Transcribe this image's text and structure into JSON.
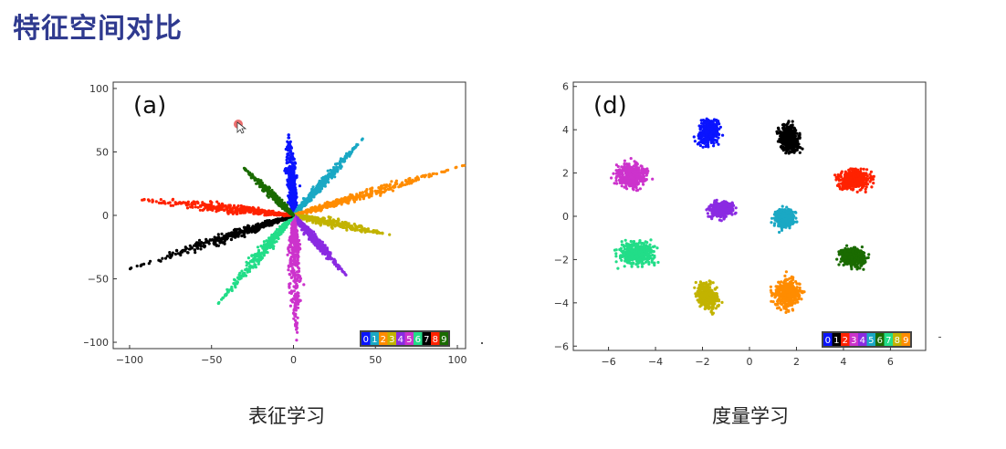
{
  "slide": {
    "title": "特征空间对比",
    "caption_left": "表征学习",
    "caption_right": "度量学习"
  },
  "chart_data": [
    {
      "type": "scatter",
      "panel_label": "(a)",
      "xlim": [
        -110,
        105
      ],
      "ylim": [
        -105,
        105
      ],
      "xticks": [
        -100,
        -50,
        0,
        50,
        100
      ],
      "yticks": [
        100,
        50,
        0,
        -50,
        -100
      ],
      "legend": [
        "0",
        "1",
        "2",
        "3",
        "4",
        "5",
        "6",
        "7",
        "8",
        "9"
      ],
      "legend_placement": "bottom-right",
      "clusters": [
        {
          "label": "0",
          "color": "#0a14ff",
          "from": [
            0,
            0
          ],
          "to": [
            -3,
            65
          ],
          "width": 4.5
        },
        {
          "label": "1",
          "color": "#1aa8c4",
          "from": [
            0,
            0
          ],
          "to": [
            42,
            60
          ],
          "width": 3.5
        },
        {
          "label": "2",
          "color": "#ff8c00",
          "from": [
            0,
            0
          ],
          "to": [
            100,
            38
          ],
          "width": 4
        },
        {
          "label": "3",
          "color": "#c2b300",
          "from": [
            0,
            0
          ],
          "to": [
            58,
            -15
          ],
          "width": 4
        },
        {
          "label": "4",
          "color": "#8a2be2",
          "from": [
            0,
            0
          ],
          "to": [
            32,
            -47
          ],
          "width": 3.5
        },
        {
          "label": "5",
          "color": "#cc33cc",
          "from": [
            0,
            0
          ],
          "to": [
            2,
            -95
          ],
          "width": 5.5
        },
        {
          "label": "6",
          "color": "#22dd88",
          "from": [
            0,
            0
          ],
          "to": [
            -45,
            -68
          ],
          "width": 4.5
        },
        {
          "label": "7",
          "color": "#000000",
          "from": [
            0,
            0
          ],
          "to": [
            -100,
            -42
          ],
          "width": 5
        },
        {
          "label": "8",
          "color": "#ff2200",
          "from": [
            0,
            0
          ],
          "to": [
            -97,
            13
          ],
          "width": 4.5
        },
        {
          "label": "9",
          "color": "#1a6b00",
          "from": [
            0,
            0
          ],
          "to": [
            -30,
            37
          ],
          "width": 3
        }
      ]
    },
    {
      "type": "scatter",
      "panel_label": "(d)",
      "xlim": [
        -7.5,
        7.5
      ],
      "ylim": [
        -6.2,
        6.2
      ],
      "xticks": [
        -6,
        -4,
        -2,
        0,
        2,
        4,
        6
      ],
      "yticks": [
        6,
        4,
        2,
        0,
        -2,
        -4,
        -6
      ],
      "legend": [
        "0",
        "1",
        "2",
        "3",
        "4",
        "5",
        "6",
        "7",
        "8",
        "9"
      ],
      "legend_placement": "bottom-right",
      "clusters": [
        {
          "label": "0",
          "color": "#0a14ff",
          "center": [
            -1.7,
            3.9
          ],
          "rx": 0.9,
          "ry": 1.3,
          "tilt": -15
        },
        {
          "label": "1",
          "color": "#000000",
          "center": [
            1.7,
            3.6
          ],
          "rx": 0.9,
          "ry": 1.4,
          "tilt": 20
        },
        {
          "label": "2",
          "color": "#ff2200",
          "center": [
            4.5,
            1.7
          ],
          "rx": 1.6,
          "ry": 1.0,
          "tilt": 10
        },
        {
          "label": "3",
          "color": "#cc33cc",
          "center": [
            -5.0,
            1.9
          ],
          "rx": 1.5,
          "ry": 1.2,
          "tilt": 0
        },
        {
          "label": "4",
          "color": "#8a2be2",
          "center": [
            -1.2,
            0.3
          ],
          "rx": 1.1,
          "ry": 0.8,
          "tilt": 0
        },
        {
          "label": "5",
          "color": "#1aa8c4",
          "center": [
            1.5,
            -0.1
          ],
          "rx": 0.9,
          "ry": 0.9,
          "tilt": 20
        },
        {
          "label": "6",
          "color": "#1a6b00",
          "center": [
            4.4,
            -1.9
          ],
          "rx": 1.2,
          "ry": 0.9,
          "tilt": -15
        },
        {
          "label": "7",
          "color": "#22dd88",
          "center": [
            -4.8,
            -1.7
          ],
          "rx": 1.6,
          "ry": 1.2,
          "tilt": 0
        },
        {
          "label": "8",
          "color": "#c2b300",
          "center": [
            -1.8,
            -3.7
          ],
          "rx": 0.9,
          "ry": 1.4,
          "tilt": 25
        },
        {
          "label": "9",
          "color": "#ff8c00",
          "center": [
            1.6,
            -3.6
          ],
          "rx": 1.2,
          "ry": 1.5,
          "tilt": -15
        }
      ]
    }
  ]
}
